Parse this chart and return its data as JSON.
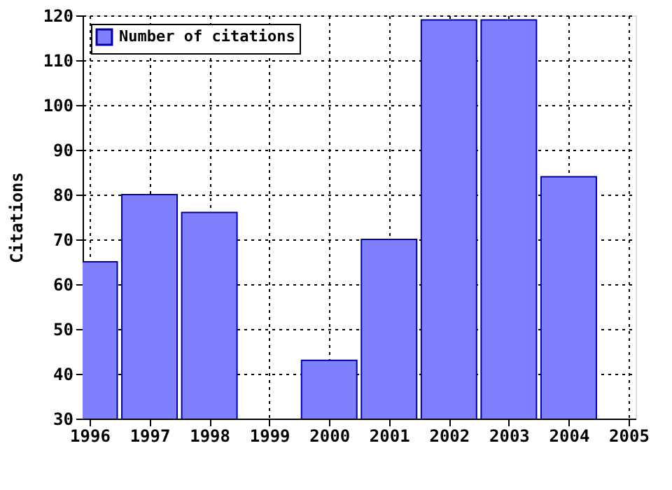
{
  "chart_data": {
    "type": "bar",
    "ylabel": "Citations",
    "x": [
      1996,
      1997,
      1998,
      1999,
      2000,
      2001,
      2002,
      2003,
      2004
    ],
    "series": [
      {
        "name": "Number of citations",
        "color": "#8080ff",
        "values": [
          65,
          80,
          76,
          null,
          43,
          70,
          119,
          119,
          84
        ]
      }
    ],
    "xlim": [
      1996,
      2005
    ],
    "xticks": [
      1996,
      1997,
      1998,
      1999,
      2000,
      2001,
      2002,
      2003,
      2004,
      2005
    ],
    "ylim": [
      30,
      120
    ],
    "yticks": [
      30,
      40,
      50,
      60,
      70,
      80,
      90,
      100,
      110,
      120
    ],
    "grid": true,
    "legend": "top left"
  }
}
